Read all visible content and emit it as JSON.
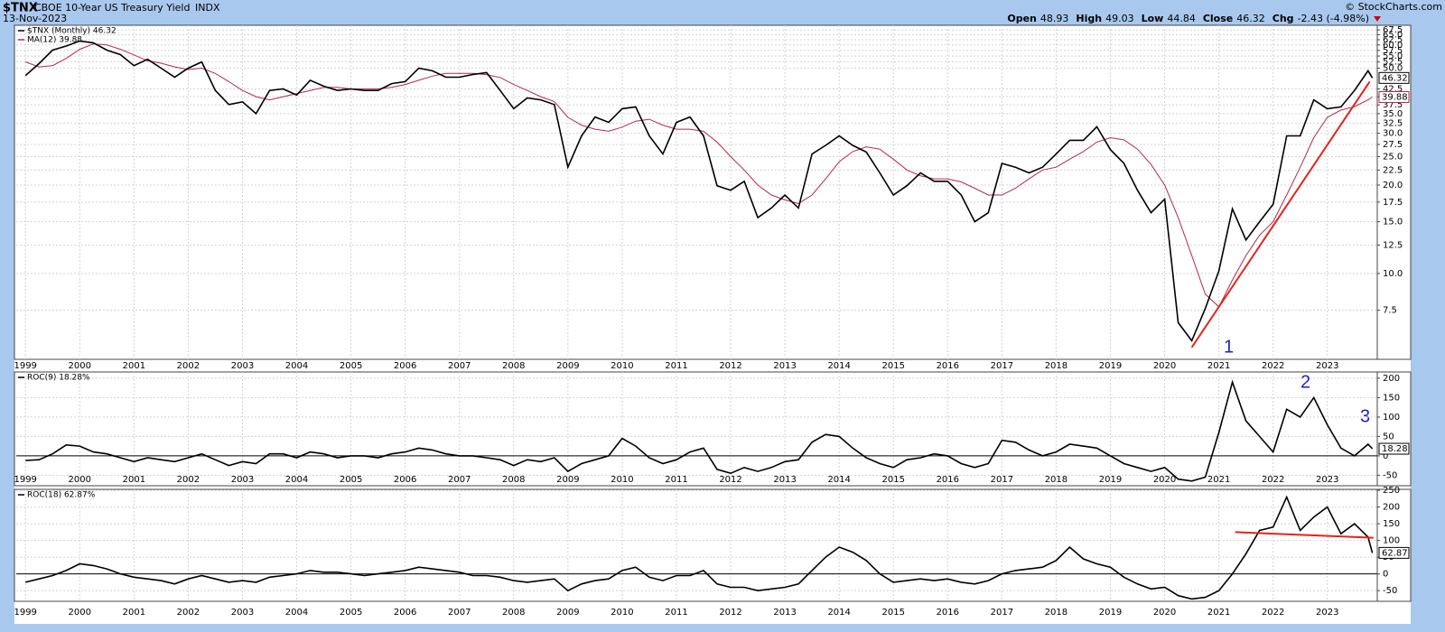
{
  "header": {
    "symbol": "$TNX",
    "description": "CBOE 10-Year US Treasury Yield",
    "exchange": "INDX",
    "date": "13-Nov-2023",
    "credit": "© StockCharts.com",
    "quote": [
      {
        "label": "Open",
        "value": "48.93"
      },
      {
        "label": "High",
        "value": "49.03"
      },
      {
        "label": "Low",
        "value": "44.84"
      },
      {
        "label": "Close",
        "value": "46.32"
      },
      {
        "label": "Chg",
        "value": "-2.43 (-4.98%)"
      }
    ]
  },
  "chart_data": [
    {
      "type": "line",
      "log_scale": true,
      "grid": true,
      "x": [
        1999,
        1999.25,
        1999.5,
        1999.75,
        2000,
        2000.25,
        2000.5,
        2000.75,
        2001,
        2001.25,
        2001.5,
        2001.75,
        2002,
        2002.25,
        2002.5,
        2002.75,
        2003,
        2003.25,
        2003.5,
        2003.75,
        2004,
        2004.25,
        2004.5,
        2004.75,
        2005,
        2005.25,
        2005.5,
        2005.75,
        2006,
        2006.25,
        2006.5,
        2006.75,
        2007,
        2007.25,
        2007.5,
        2007.75,
        2008,
        2008.25,
        2008.5,
        2008.75,
        2009,
        2009.25,
        2009.5,
        2009.75,
        2010,
        2010.25,
        2010.5,
        2010.75,
        2011,
        2011.25,
        2011.5,
        2011.75,
        2012,
        2012.25,
        2012.5,
        2012.75,
        2013,
        2013.25,
        2013.5,
        2013.75,
        2014,
        2014.25,
        2014.5,
        2014.75,
        2015,
        2015.25,
        2015.5,
        2015.75,
        2016,
        2016.25,
        2016.5,
        2016.75,
        2017,
        2017.25,
        2017.5,
        2017.75,
        2018,
        2018.25,
        2018.5,
        2018.75,
        2019,
        2019.25,
        2019.5,
        2019.75,
        2020,
        2020.25,
        2020.5,
        2020.75,
        2021,
        2021.25,
        2021.5,
        2021.75,
        2022,
        2022.25,
        2022.5,
        2022.75,
        2023,
        2023.25,
        2023.5,
        2023.75,
        2023.83
      ],
      "xlim": [
        1998.83,
        2023.92
      ],
      "xticks": [
        1999,
        2000,
        2001,
        2002,
        2003,
        2004,
        2005,
        2006,
        2007,
        2008,
        2009,
        2010,
        2011,
        2012,
        2013,
        2014,
        2015,
        2016,
        2017,
        2018,
        2019,
        2020,
        2021,
        2022,
        2023
      ],
      "ylim": [
        5.1,
        70
      ],
      "yticks": [
        67.5,
        {
          "value": 65,
          "label": "65.0"
        },
        62.5,
        {
          "value": 60,
          "label": "60.0"
        },
        57.5,
        {
          "value": 55,
          "label": "55.0"
        },
        52.5,
        {
          "value": 50,
          "label": "50.0"
        },
        42.5,
        {
          "value": 40,
          "label": "40.0"
        },
        37.5,
        {
          "value": 35,
          "label": "35.0"
        },
        32.5,
        {
          "value": 30,
          "label": "30.0"
        },
        27.5,
        {
          "value": 25,
          "label": "25.0"
        },
        22.5,
        {
          "value": 20,
          "label": "20.0"
        },
        17.5,
        {
          "value": 15,
          "label": "15.0"
        },
        12.5,
        {
          "value": 10,
          "label": "10.0"
        },
        7.5
      ],
      "series": [
        {
          "name": "$TNX (Monthly) 46.32",
          "color": "#000000",
          "values": [
            47.2,
            51.8,
            57.6,
            59.5,
            61.9,
            61.0,
            57.6,
            55.6,
            51,
            53.6,
            50,
            46.6,
            50,
            52.5,
            42,
            37.6,
            38.4,
            35,
            42,
            42.5,
            40.5,
            45.5,
            43.4,
            42,
            42.5,
            42,
            42,
            44.3,
            45,
            50,
            49,
            46.6,
            46.6,
            47.6,
            48.3,
            42,
            36.4,
            39.6,
            39,
            37.6,
            23,
            29.4,
            34.1,
            32.7,
            36.4,
            36.9,
            29.4,
            25.5,
            32.7,
            34.1,
            29.4,
            19.9,
            19.2,
            20.6,
            15.5,
            16.7,
            18.5,
            16.7,
            25.5,
            27.3,
            29.4,
            27.3,
            25.9,
            22,
            18.5,
            19.9,
            22,
            20.6,
            20.6,
            18.5,
            15,
            16.1,
            23.7,
            23,
            22,
            23,
            25.5,
            28.4,
            28.4,
            31.6,
            26.4,
            23.7,
            19.2,
            16.1,
            17.9,
            6.8,
            5.9,
            7.6,
            10.2,
            16.6,
            13,
            15,
            17.2,
            29.4,
            29.4,
            39,
            36.4,
            36.9,
            42,
            49,
            46.32
          ]
        },
        {
          "name": "MA(12) 39.88",
          "color": "#b22a4a",
          "values": [
            52.5,
            50.5,
            51,
            54,
            58,
            60.5,
            60,
            58,
            55.5,
            53,
            52,
            50.5,
            49.5,
            50,
            48,
            45,
            42,
            40,
            39,
            40,
            41,
            42,
            43,
            43,
            42.5,
            42.5,
            42.5,
            43,
            44,
            45.5,
            47,
            48,
            48,
            48,
            47.5,
            46.5,
            44,
            42,
            40,
            38.5,
            34,
            32,
            31,
            30.5,
            31.5,
            33,
            33.5,
            32,
            31,
            31,
            30.5,
            28,
            25,
            22.5,
            20,
            18.5,
            17.8,
            17.3,
            18.5,
            21,
            24,
            26,
            27,
            26.5,
            24.5,
            22.5,
            21.5,
            21,
            21,
            20.5,
            19.5,
            18.5,
            18.5,
            19.5,
            21,
            22.5,
            23,
            24.5,
            26,
            28,
            29,
            28.5,
            26.5,
            23.5,
            20,
            15.5,
            11.5,
            8.5,
            7.7,
            9.5,
            11.5,
            13.5,
            15,
            18.5,
            23,
            29,
            34,
            36,
            37,
            39,
            39.88
          ]
        }
      ],
      "trendline": {
        "color": "#e3231b",
        "x": [
          2020.5,
          2023.78
        ],
        "y": [
          5.6,
          45
        ]
      },
      "annotations": [
        "1"
      ]
    },
    {
      "type": "line",
      "grid": true,
      "x": [
        1999,
        1999.25,
        1999.5,
        1999.75,
        2000,
        2000.25,
        2000.5,
        2000.75,
        2001,
        2001.25,
        2001.5,
        2001.75,
        2002,
        2002.25,
        2002.5,
        2002.75,
        2003,
        2003.25,
        2003.5,
        2003.75,
        2004,
        2004.25,
        2004.5,
        2004.75,
        2005,
        2005.25,
        2005.5,
        2005.75,
        2006,
        2006.25,
        2006.5,
        2006.75,
        2007,
        2007.25,
        2007.5,
        2007.75,
        2008,
        2008.25,
        2008.5,
        2008.75,
        2009,
        2009.25,
        2009.5,
        2009.75,
        2010,
        2010.25,
        2010.5,
        2010.75,
        2011,
        2011.25,
        2011.5,
        2011.75,
        2012,
        2012.25,
        2012.5,
        2012.75,
        2013,
        2013.25,
        2013.5,
        2013.75,
        2014,
        2014.25,
        2014.5,
        2014.75,
        2015,
        2015.25,
        2015.5,
        2015.75,
        2016,
        2016.25,
        2016.5,
        2016.75,
        2017,
        2017.25,
        2017.5,
        2017.75,
        2018,
        2018.25,
        2018.5,
        2018.75,
        2019,
        2019.25,
        2019.5,
        2019.75,
        2020,
        2020.25,
        2020.5,
        2020.75,
        2021,
        2021.25,
        2021.5,
        2021.75,
        2022,
        2022.25,
        2022.5,
        2022.75,
        2023,
        2023.25,
        2023.5,
        2023.75,
        2023.83
      ],
      "xlim": [
        1998.83,
        2023.92
      ],
      "xticks": [
        1999,
        2000,
        2001,
        2002,
        2003,
        2004,
        2005,
        2006,
        2007,
        2008,
        2009,
        2010,
        2011,
        2012,
        2013,
        2014,
        2015,
        2016,
        2017,
        2018,
        2019,
        2020,
        2021,
        2022,
        2023
      ],
      "ylim": [
        -77,
        216
      ],
      "yticks": [
        -50,
        0,
        50,
        100,
        150,
        200
      ],
      "series": [
        {
          "name": "ROC(9) 18.28%",
          "color": "#000000",
          "values": [
            -12,
            -10,
            5,
            28,
            25,
            10,
            5,
            -5,
            -15,
            -5,
            -10,
            -15,
            -5,
            5,
            -10,
            -25,
            -15,
            -20,
            5,
            5,
            -5,
            10,
            5,
            -5,
            0,
            0,
            -5,
            5,
            10,
            20,
            15,
            5,
            0,
            0,
            -5,
            -10,
            -25,
            -10,
            -15,
            -5,
            -40,
            -20,
            -10,
            0,
            45,
            25,
            -5,
            -20,
            -10,
            10,
            20,
            -35,
            -45,
            -30,
            -40,
            -30,
            -15,
            -10,
            35,
            55,
            50,
            20,
            -5,
            -20,
            -30,
            -10,
            -5,
            5,
            0,
            -20,
            -30,
            -20,
            40,
            35,
            15,
            0,
            10,
            30,
            25,
            20,
            0,
            -20,
            -30,
            -40,
            -30,
            -60,
            -65,
            -55,
            60,
            190,
            90,
            50,
            10,
            120,
            100,
            150,
            80,
            20,
            0,
            30,
            18.28
          ]
        }
      ],
      "annotations": [
        "2",
        "3"
      ]
    },
    {
      "type": "line",
      "grid": true,
      "x": [
        1999,
        1999.25,
        1999.5,
        1999.75,
        2000,
        2000.25,
        2000.5,
        2000.75,
        2001,
        2001.25,
        2001.5,
        2001.75,
        2002,
        2002.25,
        2002.5,
        2002.75,
        2003,
        2003.25,
        2003.5,
        2003.75,
        2004,
        2004.25,
        2004.5,
        2004.75,
        2005,
        2005.25,
        2005.5,
        2005.75,
        2006,
        2006.25,
        2006.5,
        2006.75,
        2007,
        2007.25,
        2007.5,
        2007.75,
        2008,
        2008.25,
        2008.5,
        2008.75,
        2009,
        2009.25,
        2009.5,
        2009.75,
        2010,
        2010.25,
        2010.5,
        2010.75,
        2011,
        2011.25,
        2011.5,
        2011.75,
        2012,
        2012.25,
        2012.5,
        2012.75,
        2013,
        2013.25,
        2013.5,
        2013.75,
        2014,
        2014.25,
        2014.5,
        2014.75,
        2015,
        2015.25,
        2015.5,
        2015.75,
        2016,
        2016.25,
        2016.5,
        2016.75,
        2017,
        2017.25,
        2017.5,
        2017.75,
        2018,
        2018.25,
        2018.5,
        2018.75,
        2019,
        2019.25,
        2019.5,
        2019.75,
        2020,
        2020.25,
        2020.5,
        2020.75,
        2021,
        2021.25,
        2021.5,
        2021.75,
        2022,
        2022.25,
        2022.5,
        2022.75,
        2023,
        2023.25,
        2023.5,
        2023.75,
        2023.83
      ],
      "xlim": [
        1998.83,
        2023.92
      ],
      "xticks": [
        1999,
        2000,
        2001,
        2002,
        2003,
        2004,
        2005,
        2006,
        2007,
        2008,
        2009,
        2010,
        2011,
        2012,
        2013,
        2014,
        2015,
        2016,
        2017,
        2018,
        2019,
        2020,
        2021,
        2022,
        2023
      ],
      "ylim": [
        -82,
        253
      ],
      "yticks": [
        -50,
        0,
        50,
        100,
        150,
        200,
        250
      ],
      "series": [
        {
          "name": "ROC(18) 62.87%",
          "color": "#000000",
          "values": [
            -25,
            -15,
            -5,
            10,
            30,
            25,
            15,
            0,
            -10,
            -15,
            -20,
            -30,
            -15,
            -5,
            -15,
            -25,
            -20,
            -25,
            -10,
            -5,
            0,
            10,
            5,
            5,
            0,
            -5,
            0,
            5,
            10,
            20,
            15,
            10,
            5,
            -5,
            -5,
            -10,
            -20,
            -25,
            -20,
            -15,
            -50,
            -30,
            -20,
            -15,
            10,
            20,
            -10,
            -20,
            -5,
            -5,
            10,
            -30,
            -40,
            -40,
            -50,
            -45,
            -40,
            -30,
            10,
            50,
            80,
            65,
            40,
            0,
            -25,
            -20,
            -15,
            -20,
            -15,
            -25,
            -30,
            -20,
            0,
            10,
            15,
            20,
            40,
            80,
            45,
            30,
            20,
            -10,
            -30,
            -45,
            -40,
            -65,
            -75,
            -70,
            -50,
            0,
            60,
            130,
            140,
            230,
            130,
            170,
            200,
            120,
            150,
            110,
            62.87
          ]
        }
      ],
      "trendline": {
        "color": "#e3231b",
        "x": [
          2021.3,
          2023.85
        ],
        "y": [
          125,
          108
        ]
      }
    }
  ]
}
